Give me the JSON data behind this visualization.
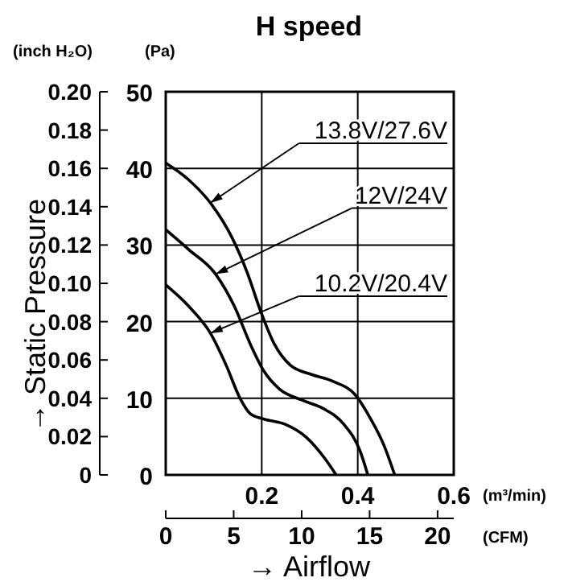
{
  "chart_data": {
    "type": "line",
    "title": "H speed",
    "xlabel": "→ Airflow",
    "ylabel": "→ Static Pressure",
    "y2label": "(Pa)",
    "x2label": "(CFM)",
    "xlim": [
      0,
      0.6
    ],
    "xticks": [
      0.2,
      0.4,
      0.6
    ],
    "y2lim": [
      0,
      50
    ],
    "y2ticks": [
      0,
      10,
      20,
      30,
      40,
      50
    ],
    "ylim": [
      0,
      0.2
    ],
    "yticks": [
      0,
      {
        "value": 0.02,
        "label": "0.02"
      },
      {
        "value": 0.04,
        "label": "0.04"
      },
      {
        "value": 0.06,
        "label": "0.06"
      },
      {
        "value": 0.08,
        "label": "0.08"
      },
      {
        "value": 0.1,
        "label": "0.10"
      },
      {
        "value": 0.12,
        "label": "0.12"
      },
      {
        "value": 0.14,
        "label": "0.14"
      },
      {
        "value": 0.16,
        "label": "0.16"
      },
      {
        "value": 0.18,
        "label": "0.18"
      },
      {
        "value": 0.2,
        "label": "0.20"
      }
    ],
    "x2lim": [
      0,
      21.19
    ],
    "x2ticks": [
      0,
      5,
      10,
      15,
      20
    ],
    "grid": true,
    "marker": "none",
    "line_style": "solid",
    "annotations": [
      "(inch H₂O)",
      "(m³/min)"
    ],
    "series": [
      {
        "name": "13.8V/27.6V",
        "color": "#000000",
        "axis": "y2",
        "x": [
          0,
          0.048,
          0.093,
          0.137,
          0.171,
          0.198,
          0.226,
          0.26,
          0.304,
          0.349,
          0.394,
          0.427,
          0.455,
          0.477
        ],
        "values": [
          40.7,
          38.5,
          35.5,
          31.1,
          26.2,
          21.3,
          17.1,
          14.3,
          13.1,
          12.2,
          10.5,
          7.3,
          3.8,
          0
        ]
      },
      {
        "name": "12V/24V",
        "color": "#000000",
        "axis": "y2",
        "x": [
          0,
          0.048,
          0.104,
          0.143,
          0.176,
          0.204,
          0.237,
          0.282,
          0.327,
          0.371,
          0.405,
          0.421
        ],
        "values": [
          32.0,
          29.4,
          26.2,
          22.0,
          17.1,
          13.6,
          11.2,
          9.8,
          8.7,
          6.6,
          3.1,
          0
        ]
      },
      {
        "name": "10.2V/20.4V",
        "color": "#000000",
        "axis": "y2",
        "x": [
          0,
          0.048,
          0.093,
          0.126,
          0.154,
          0.176,
          0.204,
          0.249,
          0.293,
          0.332,
          0.355
        ],
        "values": [
          24.8,
          22.0,
          18.5,
          14.3,
          10.1,
          8.0,
          7.3,
          6.6,
          4.9,
          2.1,
          0
        ]
      }
    ]
  }
}
